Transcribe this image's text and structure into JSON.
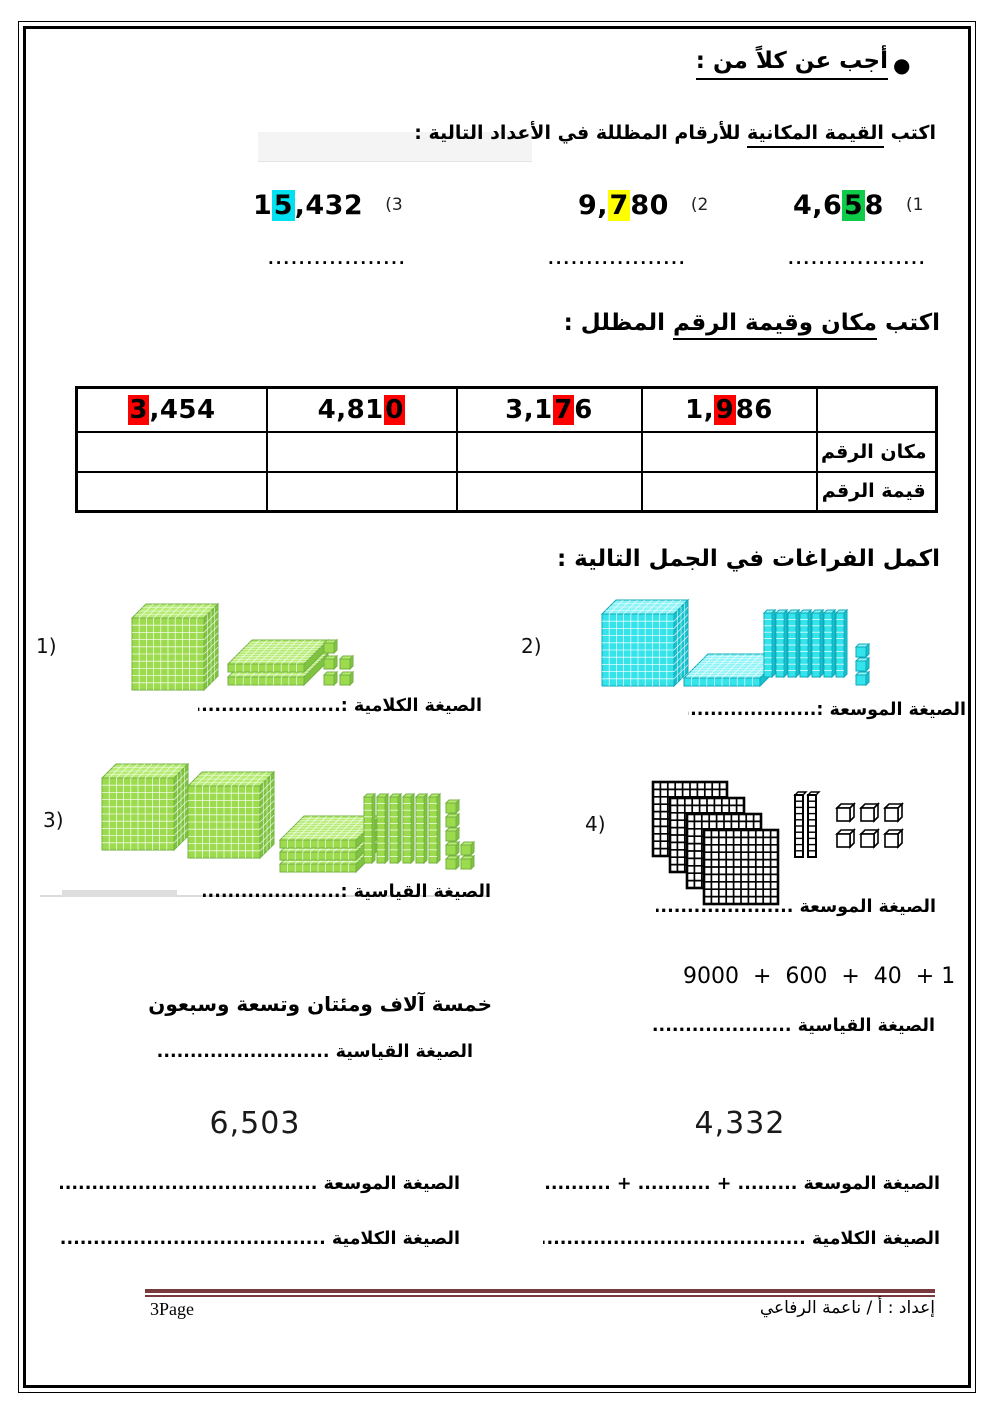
{
  "page": {
    "bullet": "●",
    "title": "أجب عن كلاً من :",
    "footer": {
      "prepared_by": "إعداد : أ / ناعمة الرفاعي",
      "page_label": "3Page",
      "line_color": "#7a393d"
    }
  },
  "section1": {
    "instruction_pre": "اكتب ",
    "instruction_underlined": "القيمة المكانية",
    "instruction_post": " للأرقام المظللة في الأعداد التالية :",
    "answer_dots": "..............................",
    "items": [
      {
        "marker": "(1",
        "prefix": "4,6",
        "highlight": "5",
        "suffix": "8",
        "highlight_color": "#0ecb4a"
      },
      {
        "marker": "(2",
        "prefix": "9,",
        "highlight": "7",
        "suffix": "80",
        "highlight_color": "#ffff00"
      },
      {
        "marker": "(3",
        "prefix": "1",
        "highlight": "5",
        "suffix": ",432",
        "highlight_color": "#00e0f0"
      }
    ]
  },
  "section2": {
    "heading_pre": "اكتب ",
    "heading_underlined": "مكان وقيمة الرقم",
    "heading_post": " المظلل :",
    "table": {
      "highlight_color": "#ff0000",
      "numbers": [
        {
          "prefix": "",
          "highlight": "3",
          "suffix": ",454"
        },
        {
          "prefix": "4,81",
          "highlight": "0",
          "suffix": ""
        },
        {
          "prefix": "3,1",
          "highlight": "7",
          "suffix": "6"
        },
        {
          "prefix": "1,",
          "highlight": "9",
          "suffix": "86"
        }
      ],
      "row_labels": [
        "مكان الرقم",
        "قيمة الرقم"
      ]
    }
  },
  "section3": {
    "heading": "اكمل الفراغات في الجمل التالية :",
    "problems": [
      {
        "num": "1)",
        "label": "الصيغة الكلامية :",
        "dots": "............................",
        "blocks": {
          "style": "color",
          "top": "#b6ec74",
          "front": "#9cdb4d",
          "side": "#7fc440",
          "edge": "#76b043",
          "gridline": "rgba(255,255,255,0.85)",
          "thousands": 1,
          "hundreds": 2,
          "tens": 0,
          "ones": 5,
          "ones_rows": [
            1,
            2,
            2
          ]
        }
      },
      {
        "num": "2)",
        "label": "الصيغة الموسعة :",
        "dots": "............................",
        "blocks": {
          "style": "color",
          "top": "#8df3f6",
          "front": "#35e3eb",
          "side": "#17c2cf",
          "edge": "#0fa9b8",
          "gridline": "rgba(255,255,255,0.85)",
          "thousands": 1,
          "hundreds": 1,
          "tens": 7,
          "ones": 3,
          "ones_rows": [
            1,
            1,
            1
          ]
        }
      },
      {
        "num": "3)",
        "label": "الصيغة القياسية :",
        "dots": "............................",
        "blocks": {
          "style": "color",
          "top": "#b6ec74",
          "front": "#9cdb4d",
          "side": "#7fc440",
          "edge": "#76b043",
          "gridline": "rgba(255,255,255,0.85)",
          "thousands": 2,
          "hundreds": 3,
          "tens": 6,
          "ones": 7,
          "ones_rows": [
            1,
            1,
            1,
            2,
            2
          ]
        }
      },
      {
        "num": "4)",
        "label": "الصيغة الموسعة ",
        "dots": "..................................",
        "blocks": {
          "style": "bw",
          "front": "#ffffff",
          "edge": "#000000",
          "thousands": 0,
          "hundreds": 4,
          "tens": 2,
          "ones": 6,
          "ones_rows": [
            3,
            3
          ]
        }
      }
    ],
    "word_problem": {
      "text": "خمسة آلاف ومئتان وتسعة وسبعون",
      "label": "الصيغة القياسية ",
      "dots": "........................................"
    },
    "expanded_problem": {
      "expression": "9000  +  600  +  40  + 1",
      "label": "الصيغة القياسية ",
      "dots": ".........................."
    },
    "number_problems": [
      {
        "number": "6,503",
        "row1_label": "الصيغة الموسعة ",
        "row1_dots": "..............................................................",
        "row2_label": "الصيغة الكلامية ",
        "row2_dots": ".............................................................."
      },
      {
        "number": "4,332",
        "row1_label": "الصيغة الموسعة ",
        "row1_dots_ltr": "............. + ........... + ........... + .........",
        "row2_label": "الصيغة الكلامية ",
        "row2_dots": ".............................................................."
      }
    ]
  }
}
